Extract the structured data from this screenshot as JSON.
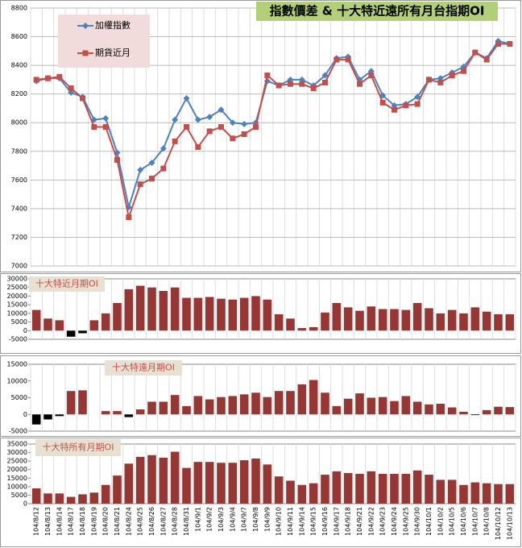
{
  "chart_data": [
    {
      "type": "line",
      "title": "指數價差 & 十大特近遠所有月台指期OI",
      "series": [
        {
          "name": "加權指數",
          "color": "#4f81bd",
          "marker": "diamond",
          "values": [
            8290,
            8310,
            8310,
            8210,
            8180,
            8020,
            8030,
            7790,
            7410,
            7670,
            7720,
            7820,
            8020,
            8170,
            8020,
            8040,
            8090,
            8000,
            7990,
            8000,
            8290,
            8260,
            8300,
            8300,
            8260,
            8330,
            8450,
            8460,
            8300,
            8360,
            8190,
            8120,
            8130,
            8180,
            8300,
            8310,
            8350,
            8390,
            8490,
            8450,
            8570,
            8550
          ]
        },
        {
          "name": "期貨近月",
          "color": "#c0504d",
          "marker": "square",
          "values": [
            8300,
            8310,
            8320,
            8240,
            8170,
            7970,
            7970,
            7740,
            7340,
            7570,
            7610,
            7680,
            7870,
            7970,
            7830,
            7940,
            7970,
            7890,
            7920,
            7970,
            8330,
            8260,
            8270,
            8270,
            8240,
            8280,
            8440,
            8440,
            8270,
            8330,
            8140,
            8090,
            8120,
            8130,
            8300,
            8280,
            8330,
            8360,
            8490,
            8440,
            8550,
            8550
          ]
        }
      ],
      "ylim": [
        7000,
        8800
      ],
      "yticks": [
        7000,
        7200,
        7400,
        7600,
        7800,
        8000,
        8200,
        8400,
        8600,
        8800
      ],
      "grid": true
    },
    {
      "type": "bar",
      "title": "十大特近月期OI",
      "color": "#953735",
      "negative_color": "#000000",
      "values": [
        12000,
        7000,
        6000,
        -3500,
        -1500,
        6000,
        10000,
        16000,
        24000,
        26000,
        25000,
        23000,
        25000,
        19000,
        19000,
        19500,
        18500,
        18000,
        19000,
        20000,
        18000,
        9500,
        7000,
        1500,
        2000,
        10500,
        16000,
        13500,
        11500,
        14000,
        12500,
        12500,
        12000,
        16000,
        13000,
        10000,
        12000,
        10000,
        13500,
        11000,
        9500,
        9500
      ],
      "ylim": [
        -5000,
        30000
      ],
      "yticks": [
        -5000,
        0,
        5000,
        10000,
        15000,
        20000,
        25000,
        30000
      ],
      "grid": true
    },
    {
      "type": "bar",
      "title": "十大特遠月期OI",
      "color": "#953735",
      "negative_color": "#000000",
      "values": [
        -3000,
        -1500,
        -500,
        7000,
        7200,
        0,
        1000,
        1000,
        -800,
        1500,
        3800,
        3800,
        5800,
        2500,
        5500,
        4500,
        5200,
        5500,
        6000,
        6500,
        5200,
        7000,
        7000,
        9000,
        10300,
        6500,
        2500,
        4700,
        6300,
        5000,
        5200,
        4000,
        5500,
        3800,
        3000,
        3200,
        2100,
        800,
        -200,
        1300,
        2300,
        2200
      ],
      "ylim": [
        -5000,
        15000
      ],
      "yticks": [
        -5000,
        0,
        5000,
        10000,
        15000
      ],
      "grid": true
    },
    {
      "type": "bar",
      "title": "十大特所有月期OI",
      "color": "#953735",
      "negative_color": "#000000",
      "categories": [
        "104/8/12",
        "104/8/13",
        "104/8/14",
        "104/8/17",
        "104/8/18",
        "104/8/19",
        "104/8/20",
        "104/8/21",
        "104/8/24",
        "104/8/25",
        "104/8/26",
        "104/8/27",
        "104/8/28",
        "104/8/31",
        "104/9/1",
        "104/9/2",
        "104/9/3",
        "104/9/4",
        "104/9/7",
        "104/9/8",
        "104/9/9",
        "104/9/10",
        "104/9/11",
        "104/9/14",
        "104/9/15",
        "104/9/16",
        "104/9/17",
        "104/9/18",
        "104/9/21",
        "104/9/22",
        "104/9/23",
        "104/9/24",
        "104/9/25",
        "104/9/30",
        "104/10/1",
        "104/10/2",
        "104/10/5",
        "104/10/6",
        "104/10/7",
        "104/10/8",
        "104/10/12",
        "104/10/13"
      ],
      "values": [
        9000,
        6000,
        6000,
        4000,
        5500,
        6500,
        11000,
        16500,
        23500,
        27500,
        28500,
        27000,
        30500,
        21000,
        24500,
        24500,
        24000,
        24000,
        25500,
        26500,
        23000,
        16000,
        13500,
        11000,
        12000,
        17000,
        19000,
        18000,
        17500,
        19000,
        17500,
        17500,
        17500,
        19500,
        17000,
        14000,
        14000,
        11000,
        12500,
        12000,
        11500,
        11500
      ],
      "ylim": [
        0,
        35000
      ],
      "yticks": [
        0,
        5000,
        10000,
        15000,
        20000,
        25000,
        30000,
        35000
      ],
      "grid": true
    }
  ]
}
